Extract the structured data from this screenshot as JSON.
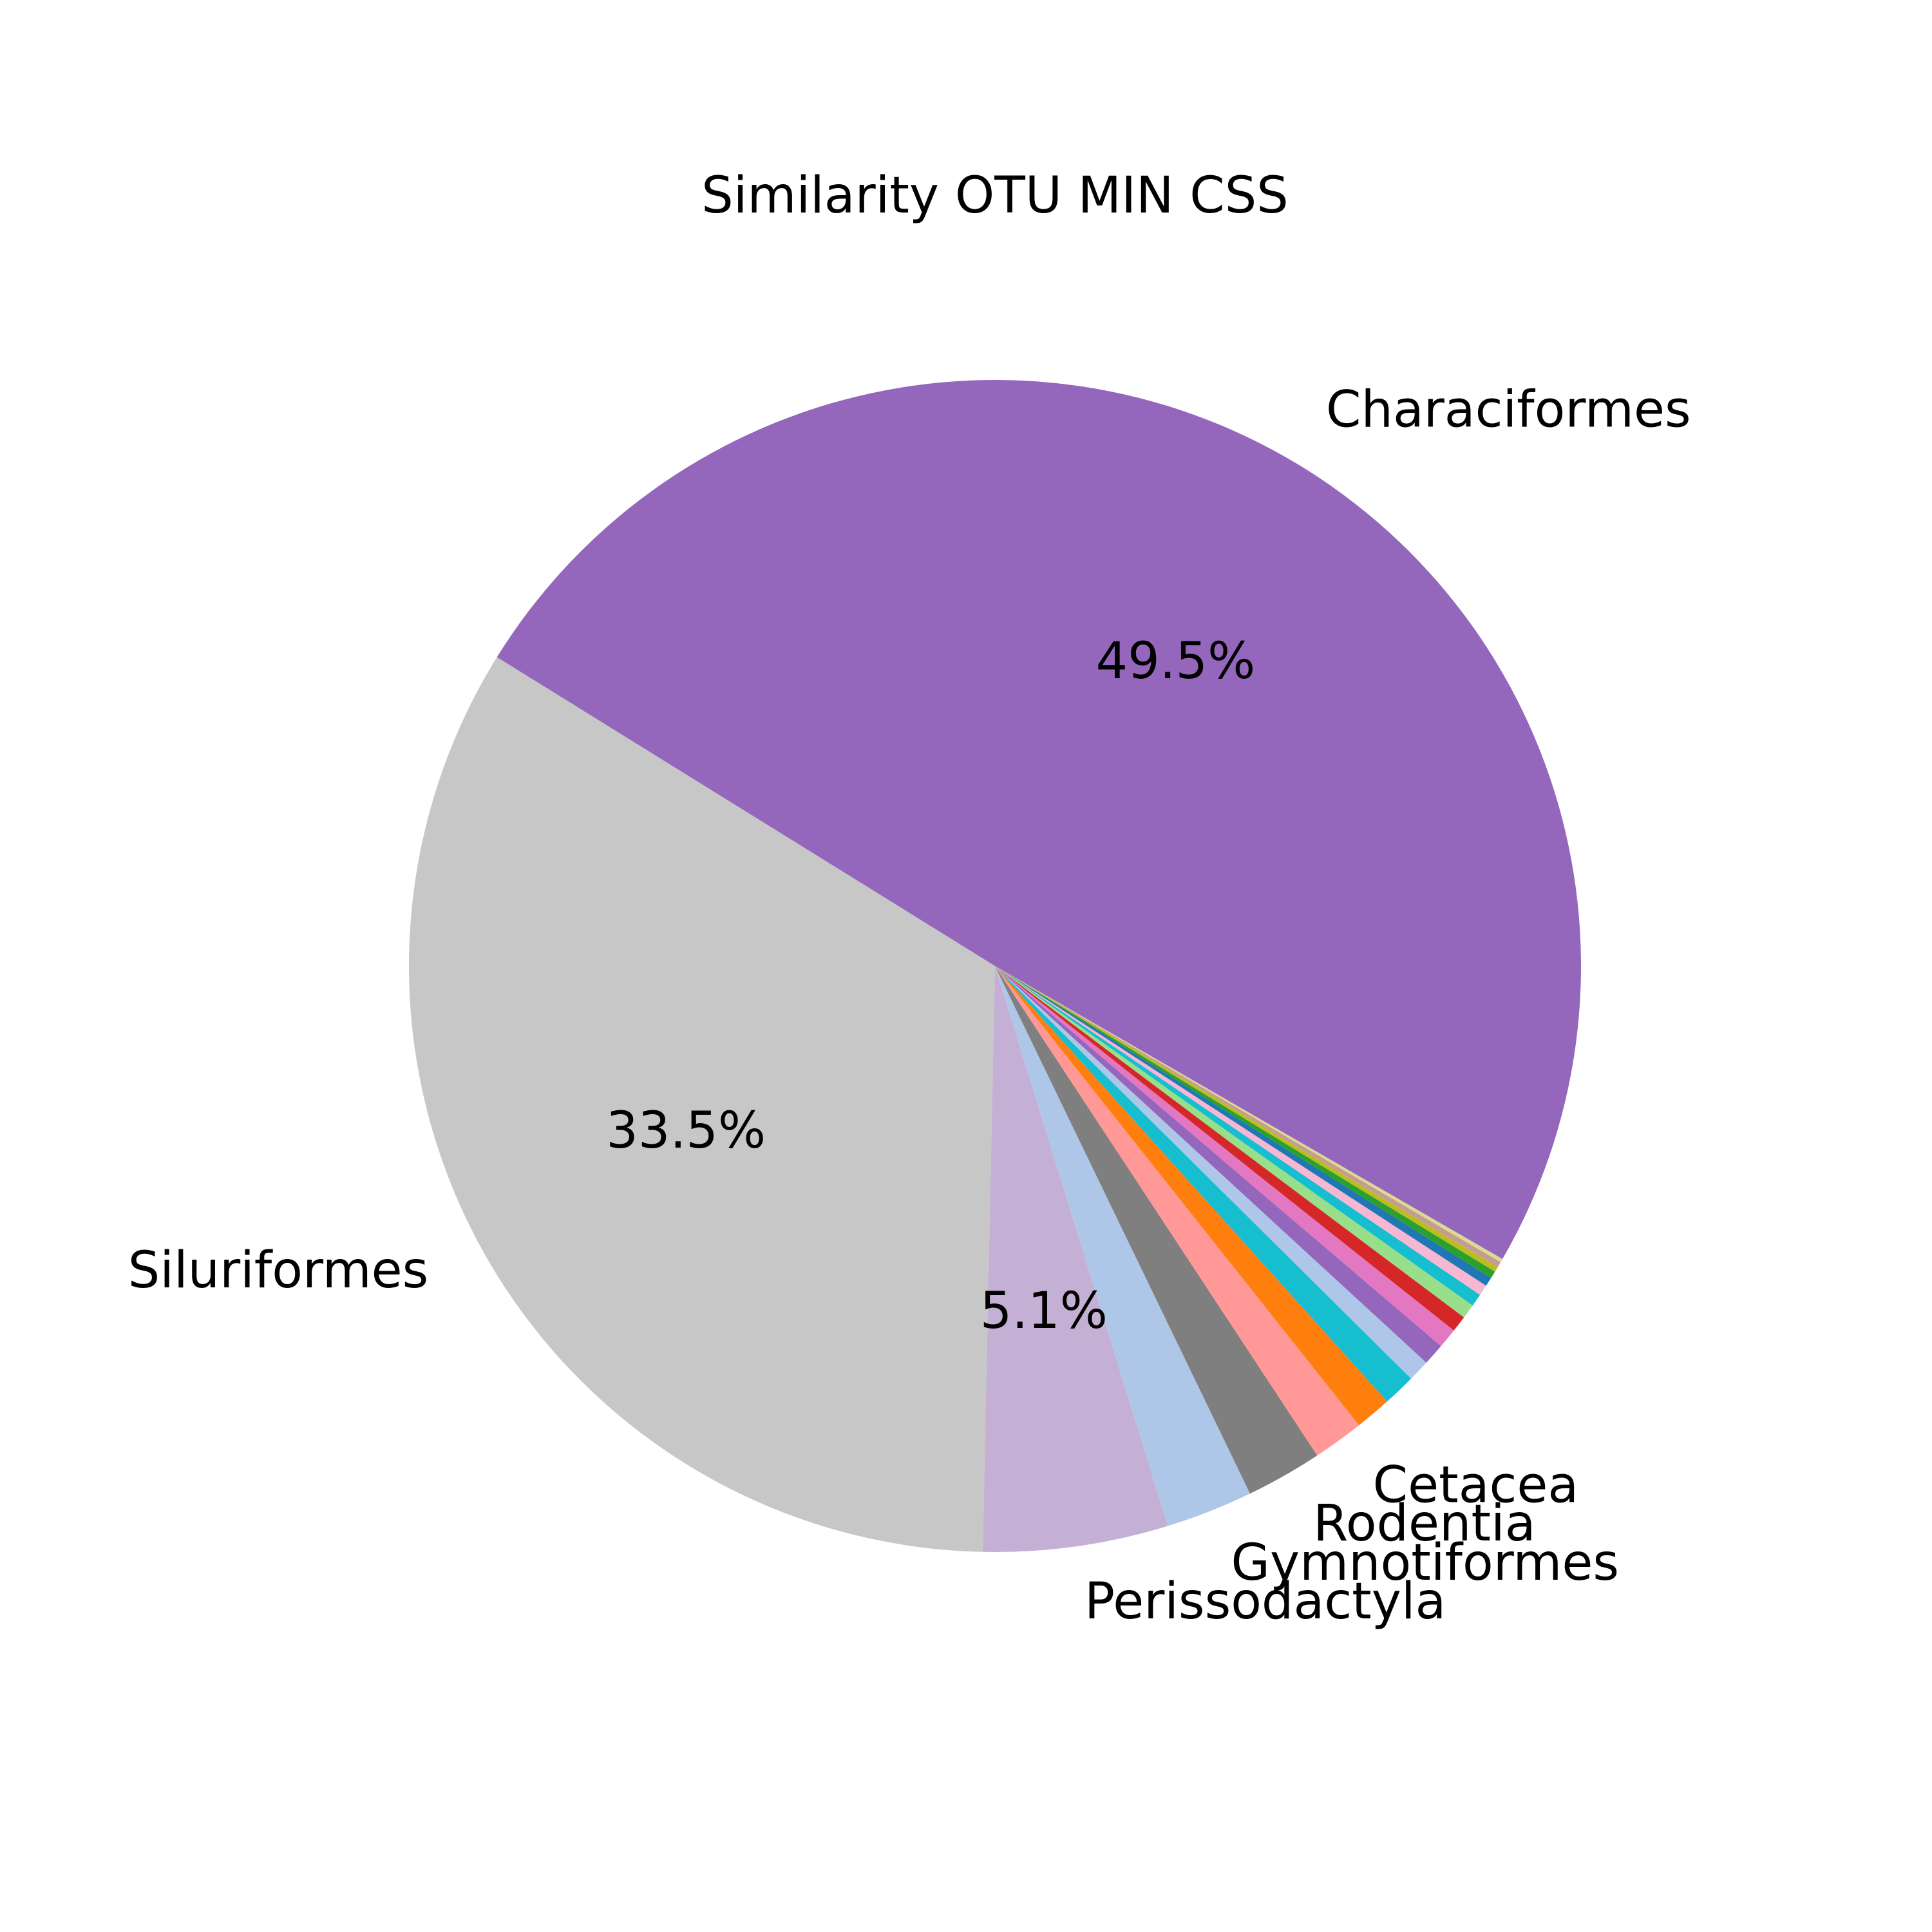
{
  "chart_data": {
    "type": "pie",
    "title": "Similarity OTU MIN CSS",
    "start_angle_deg": 0,
    "direction": "counterclockwise",
    "slices": [
      {
        "label": "Characiformes",
        "value": 49.5,
        "pct_label": "49.5%",
        "color": "#9467bd"
      },
      {
        "label": "Siluriformes",
        "value": 33.5,
        "pct_label": "33.5%",
        "color": "#c7c7c7"
      },
      {
        "label": "Perissodactyla",
        "value": 5.1,
        "pct_label": "5.1%",
        "color": "#c5b0d5"
      },
      {
        "label": "Gymnotiformes",
        "value": 2.4,
        "pct_label": "",
        "color": "#aec7e8"
      },
      {
        "label": "Rodentia",
        "value": 2.1,
        "pct_label": "",
        "color": "#7f7f7f"
      },
      {
        "label": "Cetacea",
        "value": 1.4,
        "pct_label": "",
        "color": "#ff9896"
      },
      {
        "label": "",
        "value": 1.0,
        "pct_label": "",
        "color": "#ff7f0e"
      },
      {
        "label": "",
        "value": 0.9,
        "pct_label": "",
        "color": "#17becf"
      },
      {
        "label": "",
        "value": 0.6,
        "pct_label": "",
        "color": "#aec7e8"
      },
      {
        "label": "",
        "value": 0.6,
        "pct_label": "",
        "color": "#9467bd"
      },
      {
        "label": "",
        "value": 0.55,
        "pct_label": "",
        "color": "#e377c2"
      },
      {
        "label": "",
        "value": 0.45,
        "pct_label": "",
        "color": "#d62728"
      },
      {
        "label": "",
        "value": 0.4,
        "pct_label": "",
        "color": "#98df8a"
      },
      {
        "label": "",
        "value": 0.35,
        "pct_label": "",
        "color": "#17becf"
      },
      {
        "label": "",
        "value": 0.3,
        "pct_label": "",
        "color": "#f7b6d2"
      },
      {
        "label": "",
        "value": 0.25,
        "pct_label": "",
        "color": "#1f77b4"
      },
      {
        "label": "",
        "value": 0.2,
        "pct_label": "",
        "color": "#2ca02c"
      },
      {
        "label": "",
        "value": 0.15,
        "pct_label": "",
        "color": "#bcbd22"
      },
      {
        "label": "",
        "value": 0.15,
        "pct_label": "",
        "color": "#c49c94"
      },
      {
        "label": "",
        "value": 0.1,
        "pct_label": "",
        "color": "#dbdb8d"
      }
    ]
  }
}
